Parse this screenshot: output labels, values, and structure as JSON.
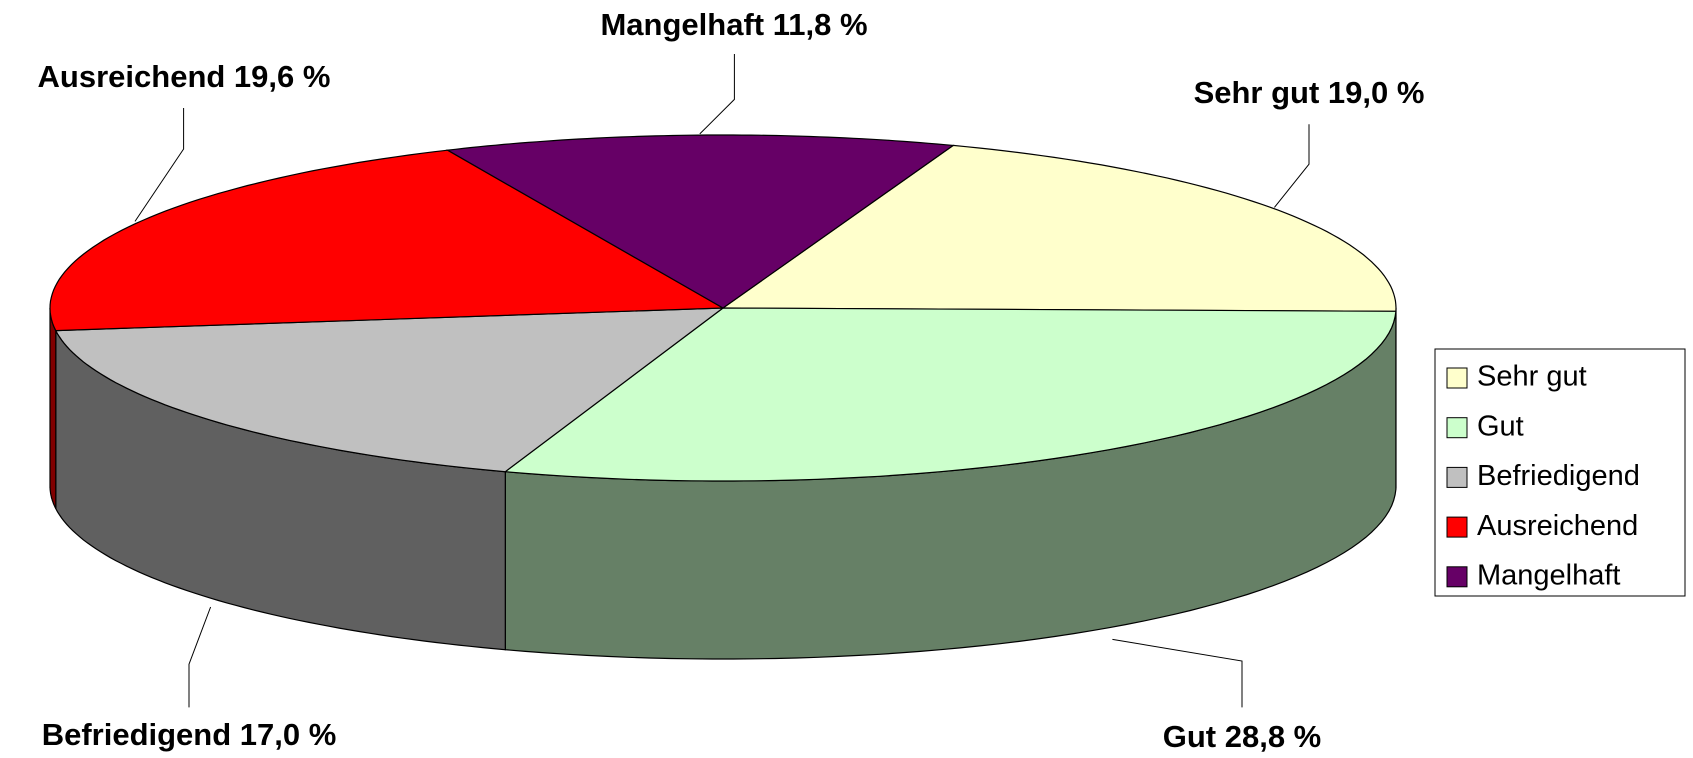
{
  "chart_data": {
    "type": "pie3d",
    "categories": [
      "Sehr gut",
      "Gut",
      "Befriedigend",
      "Ausreichend",
      "Mangelhaft"
    ],
    "values": [
      19.0,
      28.8,
      17.0,
      19.6,
      11.8
    ],
    "value_labels": [
      "Sehr gut 19,0 %",
      "Gut 28,8 %",
      "Befriedigend 17,0 %",
      "Ausreichend 19,6 %",
      "Mangelhaft 11,8 %"
    ],
    "colors": [
      "#FFFFCC",
      "#CCFFCC",
      "#C0C0C0",
      "#FF0000",
      "#660066"
    ],
    "side_colors": [
      "#808066",
      "#668066",
      "#606060",
      "#800000",
      "#330033"
    ],
    "legend": "right"
  }
}
